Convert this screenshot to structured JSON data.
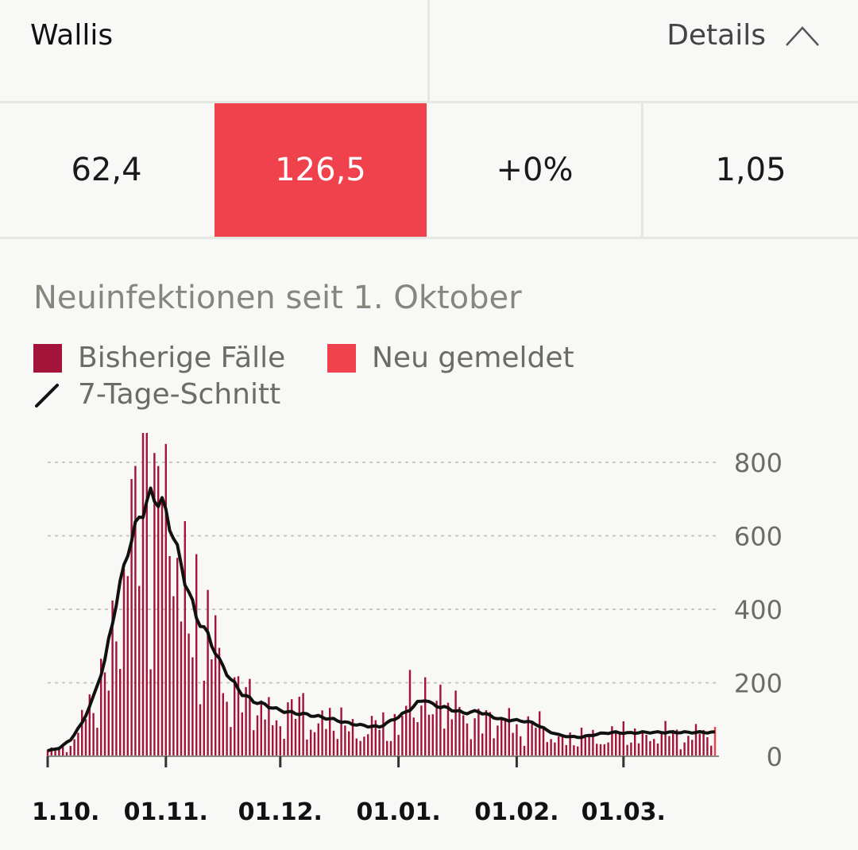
{
  "header": {
    "region": "Wallis",
    "details_label": "Details"
  },
  "metrics": [
    {
      "value": "62,4",
      "highlight": false
    },
    {
      "value": "126,5",
      "highlight": true
    },
    {
      "value": "+0%",
      "highlight": false
    },
    {
      "value": "1,05",
      "highlight": false
    }
  ],
  "colors": {
    "bars": "#a3133a",
    "new": "#ef424c",
    "avg": "#111111",
    "grid": "#c8c8c2",
    "axis_text": "#6c6c66"
  },
  "chart_data": {
    "type": "bar",
    "title": "Neuinfektionen seit 1. Oktober",
    "legend": {
      "bars": "Bisherige Fälle",
      "new": "Neu gemeldet",
      "avg": "7-Tage-Schnitt"
    },
    "legend_placement": "top-left",
    "x_start": "2020-10-01",
    "x_end": "2021-03-25",
    "x_ticks": [
      {
        "date": "2020-10-01",
        "label": "1.10."
      },
      {
        "date": "2020-11-01",
        "label": "01.11."
      },
      {
        "date": "2020-12-01",
        "label": "01.12."
      },
      {
        "date": "2021-01-01",
        "label": "01.01."
      },
      {
        "date": "2021-02-01",
        "label": "01.02."
      },
      {
        "date": "2021-03-01",
        "label": "01.03."
      }
    ],
    "y_ticks": [
      0,
      200,
      400,
      600,
      800
    ],
    "ylim": [
      0,
      880
    ],
    "grid": true,
    "avg_anchors": [
      [
        "2020-10-01",
        15
      ],
      [
        "2020-10-04",
        22
      ],
      [
        "2020-10-07",
        45
      ],
      [
        "2020-10-10",
        90
      ],
      [
        "2020-10-13",
        160
      ],
      [
        "2020-10-16",
        260
      ],
      [
        "2020-10-19",
        420
      ],
      [
        "2020-10-22",
        560
      ],
      [
        "2020-10-25",
        650
      ],
      [
        "2020-10-28",
        710
      ],
      [
        "2020-10-31",
        690
      ],
      [
        "2020-11-03",
        600
      ],
      [
        "2020-11-06",
        480
      ],
      [
        "2020-11-09",
        380
      ],
      [
        "2020-11-12",
        330
      ],
      [
        "2020-11-15",
        260
      ],
      [
        "2020-11-18",
        210
      ],
      [
        "2020-11-21",
        170
      ],
      [
        "2020-11-24",
        150
      ],
      [
        "2020-11-27",
        140
      ],
      [
        "2020-11-30",
        128
      ],
      [
        "2020-12-03",
        120
      ],
      [
        "2020-12-06",
        116
      ],
      [
        "2020-12-09",
        112
      ],
      [
        "2020-12-12",
        106
      ],
      [
        "2020-12-15",
        100
      ],
      [
        "2020-12-18",
        92
      ],
      [
        "2020-12-21",
        86
      ],
      [
        "2020-12-24",
        82
      ],
      [
        "2020-12-27",
        80
      ],
      [
        "2020-12-30",
        96
      ],
      [
        "2021-01-03",
        120
      ],
      [
        "2021-01-06",
        145
      ],
      [
        "2021-01-08",
        155
      ],
      [
        "2021-01-10",
        140
      ],
      [
        "2021-01-14",
        130
      ],
      [
        "2021-01-18",
        118
      ],
      [
        "2021-01-22",
        122
      ],
      [
        "2021-01-25",
        110
      ],
      [
        "2021-01-28",
        100
      ],
      [
        "2021-01-31",
        98
      ],
      [
        "2021-02-03",
        96
      ],
      [
        "2021-02-06",
        88
      ],
      [
        "2021-02-09",
        70
      ],
      [
        "2021-02-12",
        58
      ],
      [
        "2021-02-15",
        53
      ],
      [
        "2021-02-18",
        52
      ],
      [
        "2021-02-21",
        58
      ],
      [
        "2021-02-24",
        63
      ],
      [
        "2021-02-27",
        65
      ],
      [
        "2021-03-02",
        63
      ],
      [
        "2021-03-06",
        65
      ],
      [
        "2021-03-10",
        65
      ],
      [
        "2021-03-14",
        65
      ],
      [
        "2021-03-18",
        65
      ],
      [
        "2021-03-22",
        65
      ]
    ],
    "spikes": [
      [
        "2020-10-26",
        880
      ],
      [
        "2020-10-27",
        880
      ],
      [
        "2020-11-01",
        850
      ],
      [
        "2020-10-30",
        790
      ],
      [
        "2020-11-04",
        540
      ],
      [
        "2020-11-06",
        640
      ],
      [
        "2020-11-09",
        550
      ],
      [
        "2021-01-04",
        235
      ],
      [
        "2021-01-12",
        195
      ],
      [
        "2020-11-19",
        215
      ],
      [
        "2020-12-07",
        172
      ],
      [
        "2020-10-21",
        510
      ]
    ],
    "new_last_value": 80
  }
}
